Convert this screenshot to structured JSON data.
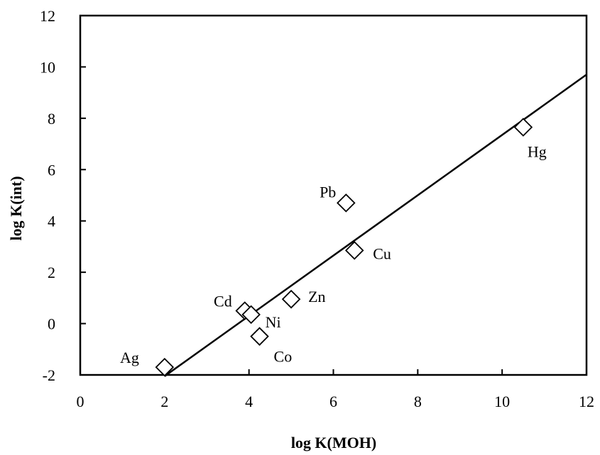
{
  "chart_data": {
    "type": "scatter",
    "title": "",
    "xlabel": "log K(MOH)",
    "ylabel": "log K(int)",
    "xlim": [
      0,
      12
    ],
    "ylim": [
      -2,
      12
    ],
    "xticks": [
      0,
      2,
      4,
      6,
      8,
      10,
      12
    ],
    "yticks": [
      -2,
      0,
      2,
      4,
      6,
      8,
      10,
      12
    ],
    "grid": false,
    "marker": "open-diamond",
    "points": [
      {
        "label": "Ag",
        "x": 2.0,
        "y": -1.7
      },
      {
        "label": "Cd",
        "x": 3.9,
        "y": 0.5
      },
      {
        "label": "Ni",
        "x": 4.05,
        "y": 0.35
      },
      {
        "label": "Co",
        "x": 4.25,
        "y": -0.5
      },
      {
        "label": "Zn",
        "x": 5.0,
        "y": 0.95
      },
      {
        "label": "Pb",
        "x": 6.3,
        "y": 4.7
      },
      {
        "label": "Cu",
        "x": 6.5,
        "y": 2.85
      },
      {
        "label": "Hg",
        "x": 10.5,
        "y": 7.65
      }
    ],
    "fit_line": {
      "x": [
        2.0,
        12.0
      ],
      "y": [
        -2.05,
        9.7
      ]
    }
  }
}
